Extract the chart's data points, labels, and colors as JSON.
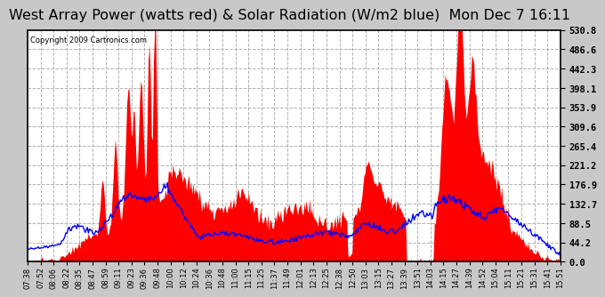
{
  "title": "West Array Power (watts red) & Solar Radiation (W/m2 blue)  Mon Dec 7 16:11",
  "copyright_text": "Copyright 2009 Cartronics.com",
  "ymax": 530.8,
  "yticks": [
    0.0,
    44.2,
    88.5,
    132.7,
    176.9,
    221.2,
    265.4,
    309.6,
    353.9,
    398.1,
    442.3,
    486.6,
    530.8
  ],
  "background_color": "#c8c8c8",
  "plot_bg_color": "#ffffff",
  "red_color": "#ff0000",
  "blue_color": "#0000ff",
  "grid_color": "#aaaaaa",
  "title_fontsize": 11.5,
  "x_labels": [
    "07:38",
    "07:52",
    "08:06",
    "08:22",
    "08:35",
    "08:47",
    "08:59",
    "09:11",
    "09:23",
    "09:36",
    "09:48",
    "10:00",
    "10:12",
    "10:24",
    "10:36",
    "10:48",
    "11:00",
    "11:15",
    "11:25",
    "11:37",
    "11:49",
    "12:01",
    "12:13",
    "12:25",
    "12:38",
    "12:50",
    "13:03",
    "13:15",
    "13:27",
    "13:39",
    "13:51",
    "14:03",
    "14:15",
    "14:27",
    "14:39",
    "14:52",
    "15:04",
    "15:11",
    "15:21",
    "15:31",
    "15:41",
    "15:51"
  ]
}
